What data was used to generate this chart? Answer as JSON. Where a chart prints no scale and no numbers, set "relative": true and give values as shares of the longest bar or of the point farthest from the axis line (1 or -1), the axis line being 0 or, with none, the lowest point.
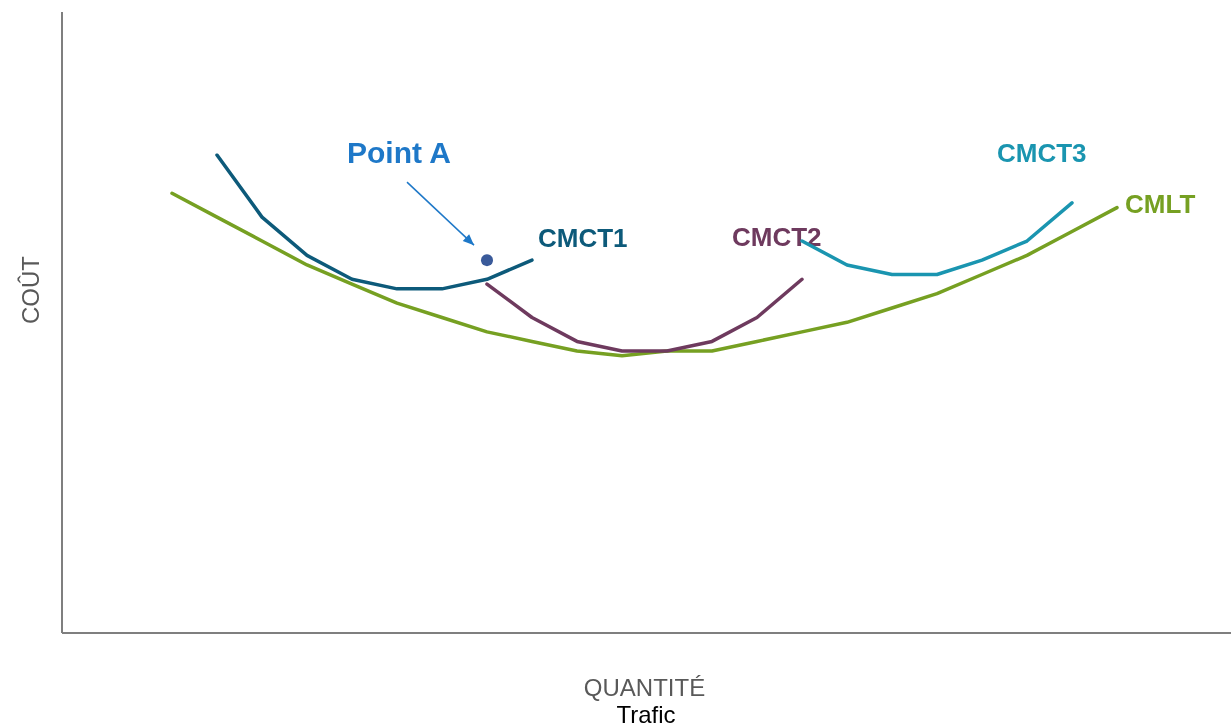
{
  "chart_data": {
    "type": "line",
    "relative": true,
    "xlabel": "QUANTITÉ",
    "ylabel": "COÛT",
    "annotations": [
      "Point A",
      "Trafic"
    ],
    "marker": "none",
    "grid": false,
    "legend": false,
    "categories": [
      null,
      null,
      null,
      null,
      null,
      null,
      null,
      null,
      null,
      null,
      null,
      null,
      null,
      null,
      null,
      null,
      null,
      null,
      null,
      null,
      null,
      null
    ],
    "series": [
      {
        "name": "CMLT",
        "color": "#76a022",
        "values": [
          0.92,
          0.87,
          0.82,
          0.77,
          0.73,
          0.69,
          0.66,
          0.63,
          0.61,
          0.59,
          0.58,
          0.59,
          0.59,
          0.61,
          0.63,
          0.65,
          0.68,
          0.71,
          0.75,
          0.79,
          0.84,
          0.89
        ]
      },
      {
        "name": "CMCT1",
        "color": "#0d5a7a",
        "values": [
          null,
          1.0,
          0.87,
          0.79,
          0.74,
          0.72,
          0.72,
          0.74,
          0.78,
          null,
          null,
          null,
          null,
          null,
          null,
          null,
          null,
          null,
          null,
          null,
          null,
          null
        ]
      },
      {
        "name": "CMCT2",
        "color": "#6e3a5e",
        "values": [
          null,
          null,
          null,
          null,
          null,
          null,
          null,
          0.73,
          0.66,
          0.61,
          0.59,
          0.59,
          0.61,
          0.66,
          0.74,
          null,
          null,
          null,
          null,
          null,
          null,
          null
        ]
      },
      {
        "name": "CMCT3",
        "color": "#1a95b0",
        "values": [
          null,
          null,
          null,
          null,
          null,
          null,
          null,
          null,
          null,
          null,
          null,
          null,
          null,
          null,
          0.82,
          0.77,
          0.75,
          0.75,
          0.78,
          0.82,
          0.9,
          null
        ]
      },
      {
        "marker": "circle",
        "color": "#3a5a9a",
        "values": [
          null,
          null,
          null,
          null,
          null,
          null,
          null,
          0.78,
          null,
          null,
          null,
          null,
          null,
          null,
          null,
          null,
          null,
          null,
          null,
          null,
          null,
          null
        ]
      }
    ]
  }
}
